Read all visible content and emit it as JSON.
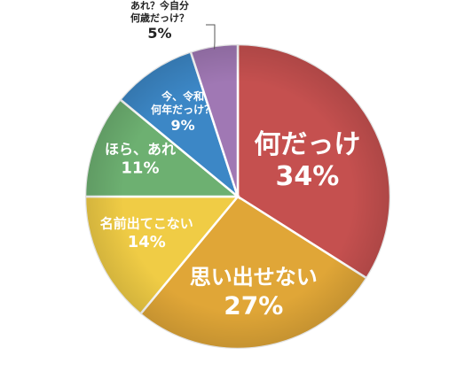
{
  "chart_data": {
    "type": "pie",
    "title": "",
    "categories": [
      "何だっけ",
      "思い出せない",
      "名前出てこない",
      "ほら、あれ",
      "今、令和何年だっけ？",
      "あれ？今自分何歳だっけ？"
    ],
    "values": [
      34,
      27,
      14,
      11,
      9,
      5
    ],
    "slices": [
      {
        "lines": [
          "何だっけ"
        ],
        "pct": "34%",
        "value": 34,
        "color": "#c5504f"
      },
      {
        "lines": [
          "思い出せない"
        ],
        "pct": "27%",
        "value": 27,
        "color": "#e0a637"
      },
      {
        "lines": [
          "名前出てこない"
        ],
        "pct": "14%",
        "value": 14,
        "color": "#f0cc45"
      },
      {
        "lines": [
          "ほら、あれ"
        ],
        "pct": "11%",
        "value": 11,
        "color": "#6db071"
      },
      {
        "lines": [
          "今、令和",
          "何年だっけ？"
        ],
        "pct": "9%",
        "value": 9,
        "color": "#3c87c6"
      },
      {
        "lines": [
          "あれ？今自分",
          "何歳だっけ？"
        ],
        "pct": "5%",
        "value": 5,
        "color": "#a078b4"
      }
    ],
    "legend": "none"
  }
}
